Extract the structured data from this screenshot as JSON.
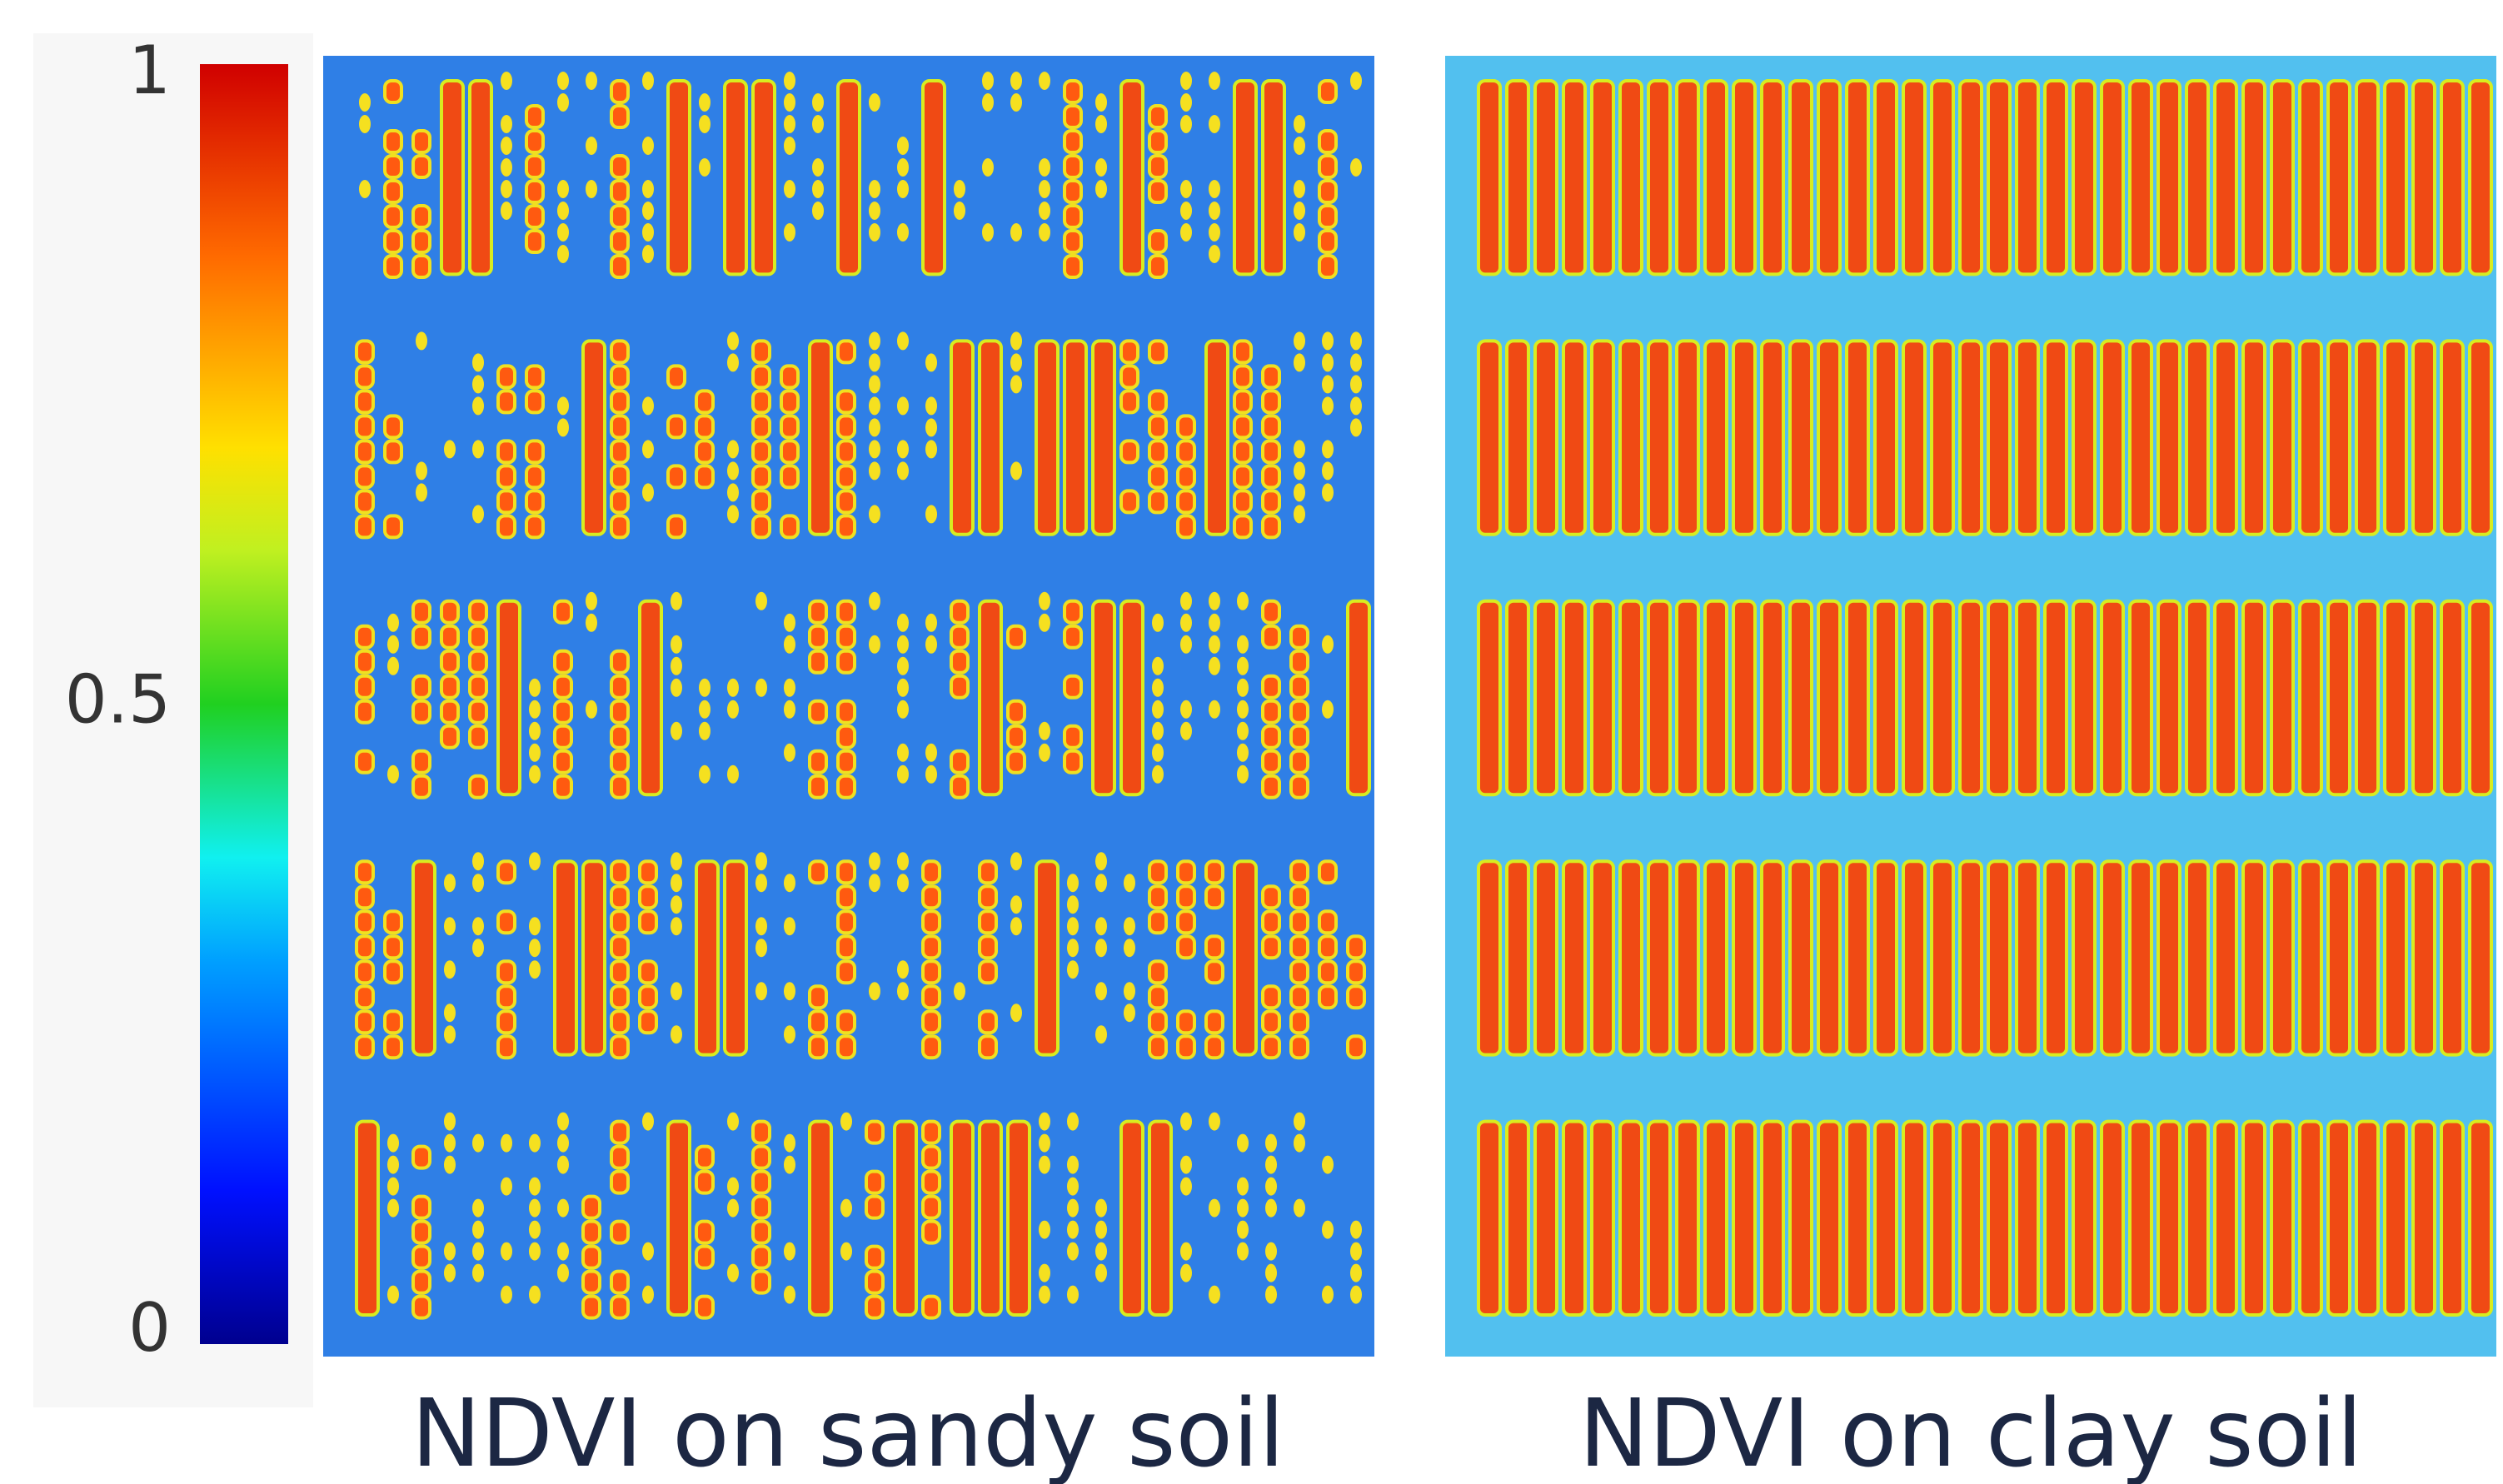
{
  "colorbar": {
    "lim": [
      0,
      1
    ],
    "ticks": [
      0,
      0.5,
      1
    ]
  },
  "panels": [
    {
      "caption": "NDVI on sandy soil"
    },
    {
      "caption": "NDVI on clay soil"
    }
  ]
}
